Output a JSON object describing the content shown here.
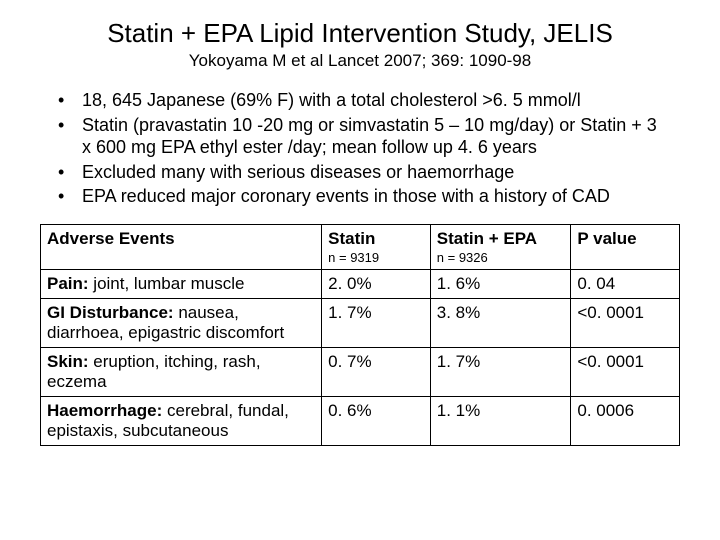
{
  "title": "Statin + EPA Lipid Intervention Study, JELIS",
  "subtitle": "Yokoyama M et al Lancet 2007; 369: 1090-98",
  "bullets": [
    "18, 645 Japanese (69% F) with a total cholesterol >6. 5 mmol/l",
    "Statin (pravastatin 10 -20 mg or simvastatin 5 – 10 mg/day) or Statin + 3 x 600 mg EPA ethyl ester /day; mean follow up 4. 6 years",
    "Excluded many with serious diseases or haemorrhage",
    "EPA reduced major coronary events in those with a history of CAD"
  ],
  "table": {
    "headers": {
      "ae": "Adverse Events",
      "statin": "Statin",
      "statin_sub": "n = 9319",
      "statinepa": "Statin + EPA",
      "statinepa_sub": "n = 9326",
      "pvalue": "P value"
    },
    "rows": [
      {
        "label_b": "Pain:",
        "label_r": "  joint, lumbar muscle",
        "statin": "2. 0%",
        "statinepa": "1. 6%",
        "p": "0. 04"
      },
      {
        "label_b": "GI Disturbance:",
        "label_r": "  nausea, diarrhoea, epigastric discomfort",
        "statin": "1. 7%",
        "statinepa": "3. 8%",
        "p": "<0. 0001"
      },
      {
        "label_b": "Skin:",
        "label_r": " eruption, itching, rash, eczema",
        "statin": "0. 7%",
        "statinepa": "1. 7%",
        "p": "<0. 0001"
      },
      {
        "label_b": "Haemorrhage:",
        "label_r": " cerebral, fundal, epistaxis, subcutaneous",
        "statin": "0. 6%",
        "statinepa": "1. 1%",
        "p": "0. 0006"
      }
    ]
  }
}
